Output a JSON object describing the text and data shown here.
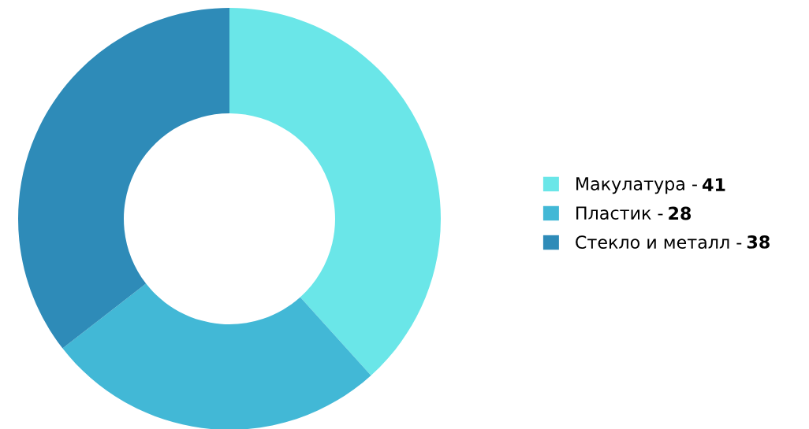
{
  "chart_data": {
    "type": "donut",
    "categories": [
      "Макулатура -",
      "Пластик -",
      "Стекло и металл -"
    ],
    "values": [
      41,
      28,
      38
    ],
    "colors": [
      "#6ae6e8",
      "#42b8d6",
      "#2e8bb8"
    ],
    "data_labels": true,
    "legend": "right"
  }
}
